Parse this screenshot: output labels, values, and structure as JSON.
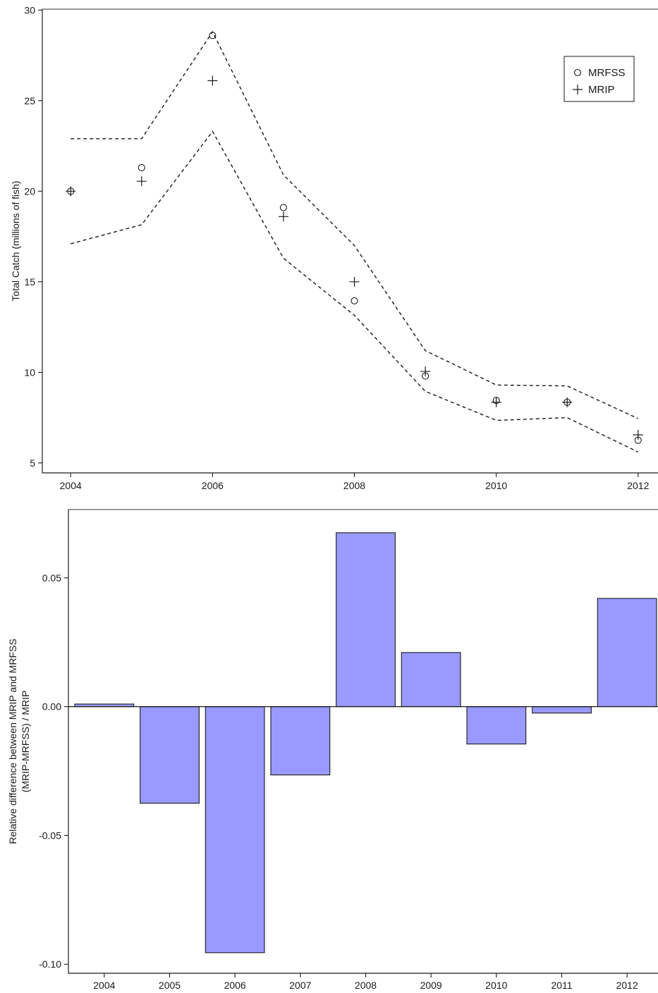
{
  "chart_data": [
    {
      "type": "scatter",
      "title": "",
      "xlabel": "",
      "ylabel": "Total Catch (millions of fish)",
      "x": [
        2004,
        2005,
        2006,
        2007,
        2008,
        2009,
        2010,
        2011,
        2012
      ],
      "xticks": [
        "2004",
        "2006",
        "2008",
        "2010",
        "2012"
      ],
      "yticks": [
        "5",
        "10",
        "15",
        "20",
        "25",
        "30"
      ],
      "xlim": [
        2003.6,
        2012.35
      ],
      "ylim": [
        4.45,
        30.05
      ],
      "grid": false,
      "legend_position": "top-right",
      "series": [
        {
          "name": "MRFSS",
          "marker": "circle",
          "values": [
            20.0,
            21.3,
            28.6,
            19.1,
            13.95,
            9.8,
            8.45,
            8.35,
            6.25
          ]
        },
        {
          "name": "MRIP",
          "marker": "plus",
          "values": [
            20.0,
            20.55,
            26.1,
            18.6,
            15.0,
            10.05,
            8.35,
            8.35,
            6.55
          ]
        }
      ],
      "confidence_band": {
        "upper": [
          22.9,
          22.9,
          28.8,
          20.9,
          17.0,
          11.2,
          9.3,
          9.25,
          7.45
        ],
        "lower": [
          17.1,
          18.15,
          23.3,
          16.3,
          13.15,
          8.95,
          7.35,
          7.5,
          5.6
        ]
      }
    },
    {
      "type": "bar",
      "title": "",
      "xlabel": "",
      "ylabel": "Relative difference between MRIP and MRFSS",
      "ylabel_line2": "(MRIP-MRFSS) / MRIP",
      "categories": [
        "2004",
        "2005",
        "2006",
        "2007",
        "2008",
        "2009",
        "2010",
        "2011",
        "2012"
      ],
      "values": [
        0.001,
        -0.0375,
        -0.0955,
        -0.0265,
        0.0675,
        0.021,
        -0.0145,
        -0.0025,
        0.042
      ],
      "yticks": [
        "-0.10",
        "-0.05",
        "0.00",
        "0.05"
      ],
      "ylim": [
        -0.1035,
        0.0765
      ],
      "bar_color": "#9999ff",
      "grid": false
    }
  ]
}
